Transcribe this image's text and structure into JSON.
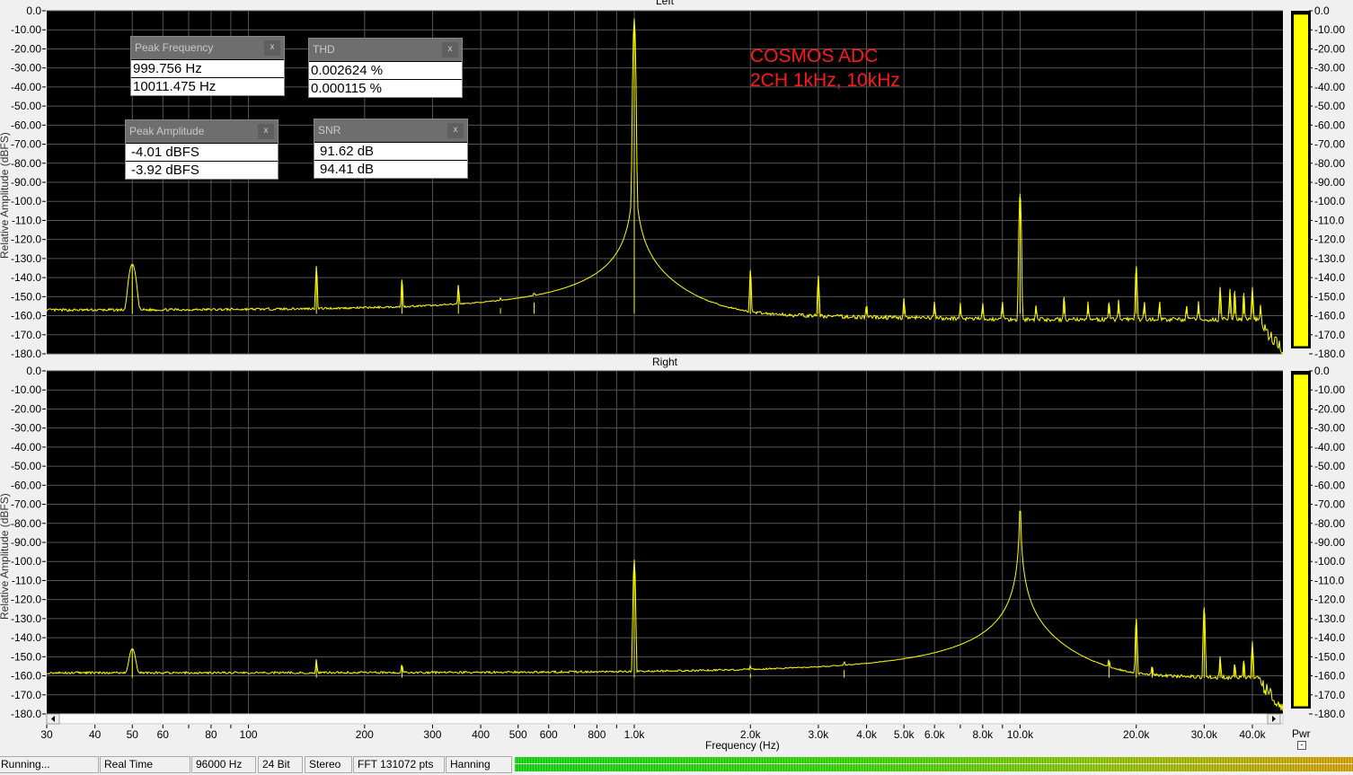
{
  "colors": {
    "background": "#000000",
    "grid": "#555555",
    "trace": "#ffff00",
    "annotation": "#ff1a1a",
    "meter": "#ffff00"
  },
  "annotation": {
    "line1": "COSMOS ADC",
    "line2": "2CH 1kHz, 10kHz"
  },
  "y_axis_label": "Relative Amplitude (dBFS)",
  "x_axis_label": "Frequency (Hz)",
  "power_label": "Pwr",
  "power_button": "-",
  "measurements": {
    "peak_frequency": {
      "title": "Peak Frequency",
      "values": [
        "999.756 Hz",
        "10011.475 Hz"
      ]
    },
    "thd": {
      "title": "THD",
      "values": [
        "0.002624 %",
        "0.000115 %"
      ]
    },
    "peak_amplitude": {
      "title": "Peak Amplitude",
      "values": [
        "-4.01 dBFS",
        "-3.92 dBFS"
      ]
    },
    "snr": {
      "title": "SNR",
      "values": [
        "91.62 dB",
        "94.41 dB"
      ]
    },
    "close_label": "x"
  },
  "status": {
    "items": [
      "Running...",
      "Real Time",
      "96000 Hz",
      "24 Bit",
      "Stereo",
      "FFT 131072 pts",
      "Hanning"
    ],
    "level_meter": "green"
  },
  "chart_data": [
    {
      "type": "line",
      "title": "Left",
      "xscale": "log",
      "xlim": [
        30,
        48000
      ],
      "ylim": [
        -180,
        0
      ],
      "grid": true,
      "y_ticks": [
        "0.0",
        "-10.00",
        "-20.00",
        "-30.00",
        "-40.00",
        "-50.00",
        "-60.00",
        "-70.00",
        "-80.00",
        "-90.00",
        "-100.0",
        "-110.0",
        "-120.0",
        "-130.0",
        "-140.0",
        "-150.0",
        "-160.0",
        "-170.0",
        "-180.0"
      ],
      "noise_floor_dbfs": -159,
      "high_noise_floor_dbfs": -162,
      "fundamental_hz": 1000,
      "peaks": [
        [
          50,
          -133
        ],
        [
          150,
          -134
        ],
        [
          250,
          -141
        ],
        [
          350,
          -144
        ],
        [
          450,
          -156
        ],
        [
          550,
          -153
        ],
        [
          1000,
          -4
        ],
        [
          2000,
          -136
        ],
        [
          3000,
          -139
        ],
        [
          4000,
          -155
        ],
        [
          5000,
          -151
        ],
        [
          6000,
          -153
        ],
        [
          7000,
          -154
        ],
        [
          8000,
          -154
        ],
        [
          9000,
          -153
        ],
        [
          10000,
          -96
        ],
        [
          11000,
          -155
        ],
        [
          13000,
          -150
        ],
        [
          15000,
          -153
        ],
        [
          17000,
          -153
        ],
        [
          18000,
          -152
        ],
        [
          20000,
          -134
        ],
        [
          21000,
          -153
        ],
        [
          23000,
          -153
        ],
        [
          27000,
          -155
        ],
        [
          29000,
          -153
        ],
        [
          33000,
          -145
        ],
        [
          35000,
          -146
        ],
        [
          36000,
          -147
        ],
        [
          38000,
          -148
        ],
        [
          40000,
          -145
        ],
        [
          42000,
          -155
        ]
      ],
      "meter_level_db": -2
    },
    {
      "type": "line",
      "title": "Right",
      "xscale": "log",
      "xlim": [
        30,
        48000
      ],
      "ylim": [
        -180,
        0
      ],
      "grid": true,
      "y_ticks": [
        "0.0",
        "-10.00",
        "-20.00",
        "-30.00",
        "-40.00",
        "-50.00",
        "-60.00",
        "-70.00",
        "-80.00",
        "-90.00",
        "-100.0",
        "-110.0",
        "-120.0",
        "-130.0",
        "-140.0",
        "-150.0",
        "-160.0",
        "-170.0",
        "-180.0"
      ],
      "noise_floor_dbfs": -161,
      "high_noise_floor_dbfs": -161,
      "fundamental_hz": 10000,
      "peaks": [
        [
          50,
          -146
        ],
        [
          150,
          -152
        ],
        [
          250,
          -155
        ],
        [
          1000,
          -99
        ],
        [
          2000,
          -159
        ],
        [
          3500,
          -157
        ],
        [
          17000,
          -153
        ],
        [
          20000,
          -130
        ],
        [
          22000,
          -156
        ],
        [
          30000,
          -124
        ],
        [
          33000,
          -150
        ],
        [
          36000,
          -154
        ],
        [
          38000,
          -152
        ],
        [
          40000,
          -142
        ]
      ],
      "meter_level_db": -2
    }
  ],
  "x_ticks": [
    {
      "f": 30,
      "label": "30"
    },
    {
      "f": 40,
      "label": "40"
    },
    {
      "f": 50,
      "label": "50"
    },
    {
      "f": 60,
      "label": "60"
    },
    {
      "f": 80,
      "label": "80"
    },
    {
      "f": 100,
      "label": "100"
    },
    {
      "f": 200,
      "label": "200"
    },
    {
      "f": 300,
      "label": "300"
    },
    {
      "f": 400,
      "label": "400"
    },
    {
      "f": 500,
      "label": "500"
    },
    {
      "f": 600,
      "label": "600"
    },
    {
      "f": 800,
      "label": "800"
    },
    {
      "f": 1000,
      "label": "1.0k"
    },
    {
      "f": 2000,
      "label": "2.0k"
    },
    {
      "f": 3000,
      "label": "3.0k"
    },
    {
      "f": 4000,
      "label": "4.0k"
    },
    {
      "f": 5000,
      "label": "5.0k"
    },
    {
      "f": 6000,
      "label": "6.0k"
    },
    {
      "f": 8000,
      "label": "8.0k"
    },
    {
      "f": 10000,
      "label": "10.0k"
    },
    {
      "f": 20000,
      "label": "20.0k"
    },
    {
      "f": 30000,
      "label": "30.0k"
    },
    {
      "f": 40000,
      "label": "40.0k"
    }
  ]
}
